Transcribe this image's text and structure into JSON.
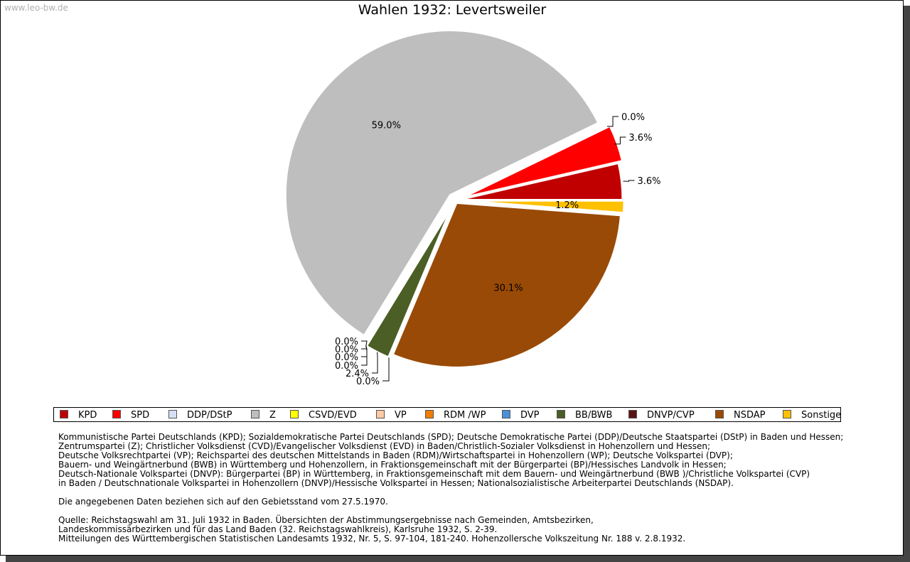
{
  "watermark": "www.leo-bw.de",
  "chart_data": {
    "type": "pie",
    "title": "Wahlen 1932: Levertsweiler",
    "slices": [
      {
        "name": "KPD",
        "value": 3.6,
        "label": "3.6%",
        "color": "#c00000"
      },
      {
        "name": "SPD",
        "value": 3.6,
        "label": "3.6%",
        "color": "#ff0000"
      },
      {
        "name": "DDP/DStP",
        "value": 0.0,
        "label": "0.0%",
        "color": "#d6e0f5"
      },
      {
        "name": "Z",
        "value": 59.0,
        "label": "59.0%",
        "color": "#bebebe"
      },
      {
        "name": "CSVD/EVD",
        "value": 0.0,
        "label": "0.0%",
        "color": "#ffff00"
      },
      {
        "name": "VP",
        "value": 0.0,
        "label": "0.0%",
        "color": "#ffcba4"
      },
      {
        "name": "RDM /WP",
        "value": 0.0,
        "label": "0.0%",
        "color": "#f07c00"
      },
      {
        "name": "DVP",
        "value": 0.0,
        "label": "0.0%",
        "color": "#4a90d9"
      },
      {
        "name": "BB/BWB",
        "value": 2.4,
        "label": "2.4%",
        "color": "#4b5e25"
      },
      {
        "name": "DNVP/CVP",
        "value": 0.0,
        "label": "0.0%",
        "color": "#5a1414"
      },
      {
        "name": "NSDAP",
        "value": 30.1,
        "label": "30.1%",
        "color": "#994a06"
      },
      {
        "name": "Sonstige",
        "value": 1.2,
        "label": "1.2%",
        "color": "#ffc000"
      }
    ]
  },
  "notes": {
    "parties": [
      "Kommunistische Partei Deutschlands (KPD); Sozialdemokratische Partei Deutschlands (SPD); Deutsche Demokratische Partei (DDP)/Deutsche Staatspartei (DStP) in Baden und Hessen;",
      "Zentrumspartei (Z); Christlicher Volksdienst (CVD)/Evangelischer Volksdienst (EVD) in Baden/Christlich-Sozialer Volksdienst in Hohenzollern und Hessen;",
      "Deutsche Volksrechtpartei (VP); Reichspartei des deutschen Mittelstands in Baden (RDM)/Wirtschaftspartei in Hohenzollern (WP); Deutsche Volkspartei (DVP);",
      "Bauern- und Weingärtnerbund (BWB) in Württemberg und Hohenzollern, in Fraktionsgemeinschaft mit der Bürgerpartei (BP)/Hessisches Landvolk in Hessen;",
      "Deutsch-Nationale Volkspartei (DNVP): Bürgerpartei (BP) in Württemberg, in Fraktionsgemeinschaft mit dem Bauern- und Weingärtnerbund (BWB )/Christliche Volkspartei (CVP)",
      "in Baden / Deutschnationale Volkspartei in Hohenzollern (DNVP)/Hessische Volkspartei in Hessen; Nationalsozialistische Arbeiterpartei Deutschlands (NSDAP)."
    ],
    "territory": "Die angegebenen Daten beziehen sich auf den Gebietsstand vom 27.5.1970.",
    "source": [
      "Quelle: Reichstagswahl am 31. Juli 1932 in Baden. Übersichten der Abstimmungsergebnisse nach Gemeinden, Amtsbezirken,",
      "Landeskommissärbezirken und für das Land Baden (32. Reichstagswahlkreis), Karlsruhe 1932, S. 2-39.",
      "Mitteilungen des Württembergischen Statistischen Landesamts 1932, Nr. 5, S. 97-104, 181-240. Hohenzollersche Volkszeitung Nr. 188 v. 2.8.1932."
    ]
  }
}
